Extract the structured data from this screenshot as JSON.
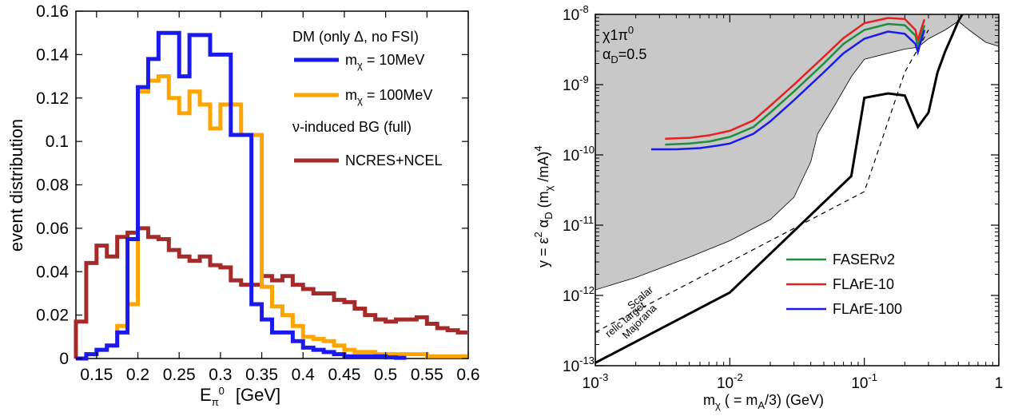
{
  "chart_data": [
    {
      "type": "line",
      "step": true,
      "xlabel_base": "E",
      "xlabel_sub": "π",
      "xlabel_sup": "0",
      "xlabel_unit": "[GeV]",
      "ylabel": "event distribution",
      "xlim": [
        0.125,
        0.6
      ],
      "ylim": [
        0,
        0.16
      ],
      "x_ticks": [
        "0.15",
        "0.2",
        "0.25",
        "0.3",
        "0.35",
        "0.4",
        "0.45",
        "0.5",
        "0.55",
        "0.6"
      ],
      "y_ticks": [
        "0",
        "0.02",
        "0.04",
        "0.06",
        "0.08",
        "0.1",
        "0.12",
        "0.14",
        "0.16"
      ],
      "legend": {
        "header1": "DM (only Δ, no FSI)",
        "header2": "ν-induced BG (full)"
      },
      "series": [
        {
          "name": "m_χ = 10MeV",
          "label_base": "m",
          "label_sub": "χ",
          "label_rest": " = 10MeV",
          "color": "#1a1aee",
          "edges": [
            0.125,
            0.1375,
            0.15,
            0.1625,
            0.175,
            0.1875,
            0.2,
            0.2125,
            0.225,
            0.2375,
            0.25,
            0.2625,
            0.275,
            0.2875,
            0.3,
            0.3125,
            0.325,
            0.3375,
            0.35,
            0.3625,
            0.375,
            0.3875,
            0.4,
            0.4125,
            0.425,
            0.4375,
            0.45,
            0.4625,
            0.475,
            0.4875,
            0.5,
            0.5125,
            0.525
          ],
          "values": [
            0,
            0.002,
            0.004,
            0.006,
            0.012,
            0.055,
            0.125,
            0.138,
            0.15,
            0.15,
            0.13,
            0.149,
            0.149,
            0.14,
            0.14,
            0.103,
            0.103,
            0.025,
            0.018,
            0.012,
            0.012,
            0.008,
            0.005,
            0.004,
            0.003,
            0.002,
            0.001,
            0.001,
            0.001,
            0.001,
            0.0005,
            0.0003
          ]
        },
        {
          "name": "m_χ = 100MeV",
          "label_base": "m",
          "label_sub": "χ",
          "label_rest": " = 100MeV",
          "color": "#ffa500",
          "edges": [
            0.125,
            0.1375,
            0.15,
            0.1625,
            0.175,
            0.1875,
            0.2,
            0.2125,
            0.225,
            0.2375,
            0.25,
            0.2625,
            0.275,
            0.2875,
            0.3,
            0.3125,
            0.325,
            0.3375,
            0.35,
            0.3625,
            0.375,
            0.3875,
            0.4,
            0.4125,
            0.425,
            0.4375,
            0.45,
            0.4625,
            0.475,
            0.4875,
            0.5,
            0.5125,
            0.525,
            0.5375,
            0.55,
            0.5625,
            0.575,
            0.5875,
            0.6
          ],
          "values": [
            0,
            0.002,
            0.004,
            0.006,
            0.015,
            0.025,
            0.123,
            0.128,
            0.13,
            0.12,
            0.113,
            0.123,
            0.117,
            0.106,
            0.117,
            0.117,
            0.103,
            0.103,
            0.033,
            0.024,
            0.02,
            0.015,
            0.01,
            0.009,
            0.008,
            0.006,
            0.004,
            0.003,
            0.003,
            0.002,
            0.002,
            0.002,
            0.002,
            0.002,
            0.001,
            0.001,
            0.001,
            0.001
          ]
        },
        {
          "name": "NCRES+NCEL",
          "label_base": "NCRES+NCEL",
          "label_sub": "",
          "label_rest": "",
          "color": "#a52a2a",
          "edges": [
            0.125,
            0.1375,
            0.15,
            0.1625,
            0.175,
            0.1875,
            0.2,
            0.2125,
            0.225,
            0.2375,
            0.25,
            0.2625,
            0.275,
            0.2875,
            0.3,
            0.3125,
            0.325,
            0.3375,
            0.35,
            0.3625,
            0.375,
            0.3875,
            0.4,
            0.4125,
            0.425,
            0.4375,
            0.45,
            0.4625,
            0.475,
            0.4875,
            0.5,
            0.5125,
            0.525,
            0.5375,
            0.55,
            0.5625,
            0.575,
            0.5875,
            0.6
          ],
          "values": [
            0.017,
            0.044,
            0.052,
            0.047,
            0.056,
            0.058,
            0.06,
            0.056,
            0.055,
            0.05,
            0.047,
            0.045,
            0.047,
            0.043,
            0.042,
            0.036,
            0.034,
            0.034,
            0.038,
            0.036,
            0.038,
            0.034,
            0.032,
            0.03,
            0.03,
            0.027,
            0.026,
            0.023,
            0.02,
            0.018,
            0.017,
            0.018,
            0.018,
            0.019,
            0.016,
            0.014,
            0.013,
            0.012
          ]
        }
      ]
    },
    {
      "type": "line",
      "xscale": "log",
      "yscale": "log",
      "xlim": [
        0.001,
        1
      ],
      "ylim": [
        1e-13,
        1e-08
      ],
      "xlabel": "m_χ ( = m_A/3)  (GeV)",
      "xlabel_parts": [
        "m",
        "χ",
        " ( = m",
        "A",
        "/3)  (GeV)"
      ],
      "ylabel": "y = ε² α_D (m_χ /mA)⁴",
      "ylabel_parts": [
        "y = ε",
        "2",
        " α",
        "D",
        " (m",
        "χ",
        " /mA)",
        "4"
      ],
      "x_ticks": [
        {
          "base": "10",
          "exp": "-3"
        },
        {
          "base": "10",
          "exp": "-2"
        },
        {
          "base": "10",
          "exp": "-1"
        },
        {
          "base": "1",
          "exp": ""
        }
      ],
      "y_ticks": [
        {
          "base": "10",
          "exp": "-13"
        },
        {
          "base": "10",
          "exp": "-12"
        },
        {
          "base": "10",
          "exp": "-11"
        },
        {
          "base": "10",
          "exp": "-10"
        },
        {
          "base": "10",
          "exp": "-9"
        },
        {
          "base": "10",
          "exp": "-8"
        }
      ],
      "annotation": {
        "line1_base": "χ1π",
        "line1_sup": "0",
        "line2_base": "α",
        "line2_sub": "D",
        "line2_rest": "=0.5"
      },
      "curve_labels": {
        "scalar": "Scalar",
        "relic": "relic target",
        "majorana": "Majorana"
      },
      "excluded_region_color": "#c8c8c8",
      "excluded_boundary": {
        "x": [
          0.001,
          0.002,
          0.005,
          0.01,
          0.02,
          0.03,
          0.04,
          0.045,
          0.06,
          0.08,
          0.1,
          0.15,
          0.2,
          0.25,
          0.3,
          0.4,
          0.5,
          0.6,
          0.8,
          1.0
        ],
        "y": [
          1.2e-12,
          1.8e-12,
          3.5e-12,
          6e-12,
          1.2e-11,
          2.5e-11,
          8e-11,
          2e-10,
          5e-10,
          1.3e-09,
          2.3e-09,
          2.8e-09,
          3.2e-09,
          3.4e-09,
          4.5e-09,
          6e-09,
          8e-09,
          6e-09,
          4e-09,
          3.5e-09
        ]
      },
      "relic_scalar": {
        "x": [
          0.001,
          0.01,
          0.1,
          0.2,
          0.3
        ],
        "y": [
          3e-13,
          3e-12,
          3e-11,
          1.5e-09,
          6e-09
        ],
        "style": "dashed"
      },
      "relic_majorana": {
        "x": [
          0.001,
          0.01,
          0.08,
          0.1,
          0.15,
          0.2,
          0.25,
          0.3,
          0.35,
          0.4,
          0.45,
          0.5,
          0.55
        ],
        "y": [
          1.1e-13,
          1.1e-12,
          5e-11,
          6.5e-10,
          7.5e-10,
          7e-10,
          2.5e-10,
          4e-10,
          1.5e-09,
          3e-09,
          5e-09,
          8e-09,
          1.1e-08
        ],
        "style": "solid-thick"
      },
      "series": [
        {
          "name": "FASERν2",
          "color": "#1e8f40",
          "x": [
            0.0033,
            0.005,
            0.007,
            0.01,
            0.015,
            0.02,
            0.03,
            0.05,
            0.07,
            0.1,
            0.15,
            0.2,
            0.24,
            0.25,
            0.26,
            0.28
          ],
          "y": [
            1.4e-10,
            1.45e-10,
            1.55e-10,
            1.8e-10,
            2.5e-10,
            4e-10,
            8e-10,
            2e-09,
            3.8e-09,
            6e-09,
            7.3e-09,
            7e-09,
            5e-09,
            3.5e-09,
            4.5e-09,
            7e-09
          ]
        },
        {
          "name": "FLArE-10",
          "color": "#e52020",
          "x": [
            0.0033,
            0.005,
            0.007,
            0.01,
            0.015,
            0.02,
            0.03,
            0.05,
            0.07,
            0.1,
            0.15,
            0.2,
            0.24,
            0.25,
            0.26,
            0.28
          ],
          "y": [
            1.7e-10,
            1.75e-10,
            1.9e-10,
            2.2e-10,
            3.1e-10,
            5e-10,
            1e-09,
            2.5e-09,
            4.6e-09,
            7.5e-09,
            8.9e-09,
            8.6e-09,
            6e-09,
            4.2e-09,
            5.5e-09,
            8.5e-09
          ]
        },
        {
          "name": "FLArE-100",
          "color": "#1a1aee",
          "x": [
            0.0026,
            0.004,
            0.006,
            0.008,
            0.01,
            0.015,
            0.02,
            0.03,
            0.05,
            0.07,
            0.1,
            0.15,
            0.2,
            0.24,
            0.25,
            0.26,
            0.28
          ],
          "y": [
            1.2e-10,
            1.2e-10,
            1.25e-10,
            1.35e-10,
            1.45e-10,
            2e-10,
            3e-10,
            6e-10,
            1.5e-09,
            2.8e-09,
            4.5e-09,
            5.7e-09,
            5.3e-09,
            3.8e-09,
            2.9e-09,
            3.8e-09,
            6e-09
          ]
        }
      ]
    }
  ]
}
